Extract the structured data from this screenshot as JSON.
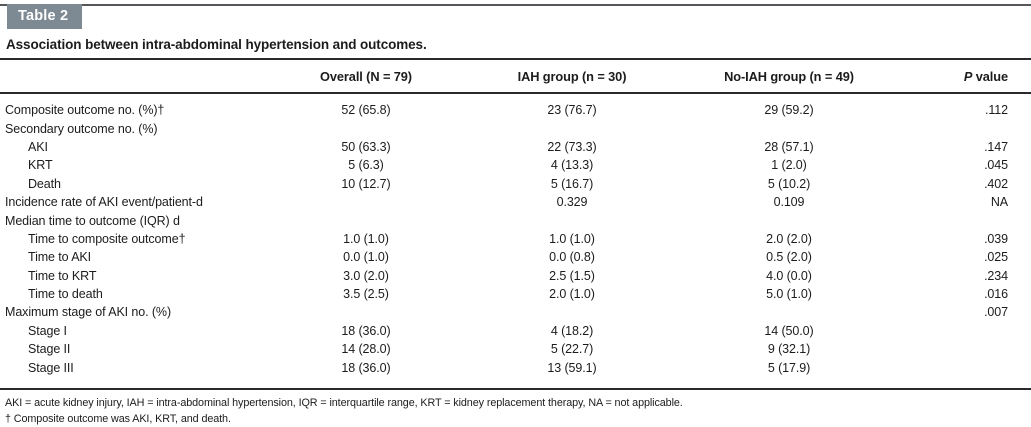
{
  "table": {
    "label": "Table 2",
    "title": "Association between intra-abdominal hypertension and outcomes.",
    "columns": {
      "row_label": "",
      "overall": "Overall (N = 79)",
      "iah": "IAH group (n = 30)",
      "no_iah": "No-IAH group (n = 49)",
      "p_italic": "P",
      "p_rest": " value"
    },
    "rows": [
      {
        "label": "Composite outcome no. (%)†",
        "overall": "52 (65.8)",
        "iah": "23 (76.7)",
        "no_iah": "29 (59.2)",
        "p": ".112"
      },
      {
        "label": "Secondary outcome no. (%)",
        "overall": "",
        "iah": "",
        "no_iah": "",
        "p": ""
      },
      {
        "label": "AKI",
        "overall": "50 (63.3)",
        "iah": "22 (73.3)",
        "no_iah": "28 (57.1)",
        "p": ".147"
      },
      {
        "label": "KRT",
        "overall": "5 (6.3)",
        "iah": "4 (13.3)",
        "no_iah": "1 (2.0)",
        "p": ".045"
      },
      {
        "label": "Death",
        "overall": "10 (12.7)",
        "iah": "5 (16.7)",
        "no_iah": "5 (10.2)",
        "p": ".402"
      },
      {
        "label": "Incidence rate of AKI event/patient-d",
        "overall": "",
        "iah": "0.329",
        "no_iah": "0.109",
        "p": "NA"
      },
      {
        "label": "Median time to outcome (IQR) d",
        "overall": "",
        "iah": "",
        "no_iah": "",
        "p": ""
      },
      {
        "label": "Time to composite outcome†",
        "overall": "1.0 (1.0)",
        "iah": "1.0 (1.0)",
        "no_iah": "2.0 (2.0)",
        "p": ".039"
      },
      {
        "label": "Time to AKI",
        "overall": "0.0 (1.0)",
        "iah": "0.0 (0.8)",
        "no_iah": "0.5 (2.0)",
        "p": ".025"
      },
      {
        "label": "Time to KRT",
        "overall": "3.0 (2.0)",
        "iah": "2.5 (1.5)",
        "no_iah": "4.0 (0.0)",
        "p": ".234"
      },
      {
        "label": "Time to death",
        "overall": "3.5 (2.5)",
        "iah": "2.0 (1.0)",
        "no_iah": "5.0 (1.0)",
        "p": ".016"
      },
      {
        "label": "Maximum stage of AKI no. (%)",
        "overall": "",
        "iah": "",
        "no_iah": "",
        "p": ".007"
      },
      {
        "label": "Stage I",
        "overall": "18 (36.0)",
        "iah": "4 (18.2)",
        "no_iah": "14 (50.0)",
        "p": ""
      },
      {
        "label": "Stage II",
        "overall": "14 (28.0)",
        "iah": "5 (22.7)",
        "no_iah": "9 (32.1)",
        "p": ""
      },
      {
        "label": "Stage III",
        "overall": "18 (36.0)",
        "iah": "13 (59.1)",
        "no_iah": "5 (17.9)",
        "p": ""
      }
    ],
    "footnotes": [
      "AKI = acute kidney injury, IAH = intra-abdominal hypertension, IQR = interquartile range, KRT = kidney replacement therapy, NA = not applicable.",
      "† Composite outcome was AKI, KRT, and death."
    ]
  }
}
